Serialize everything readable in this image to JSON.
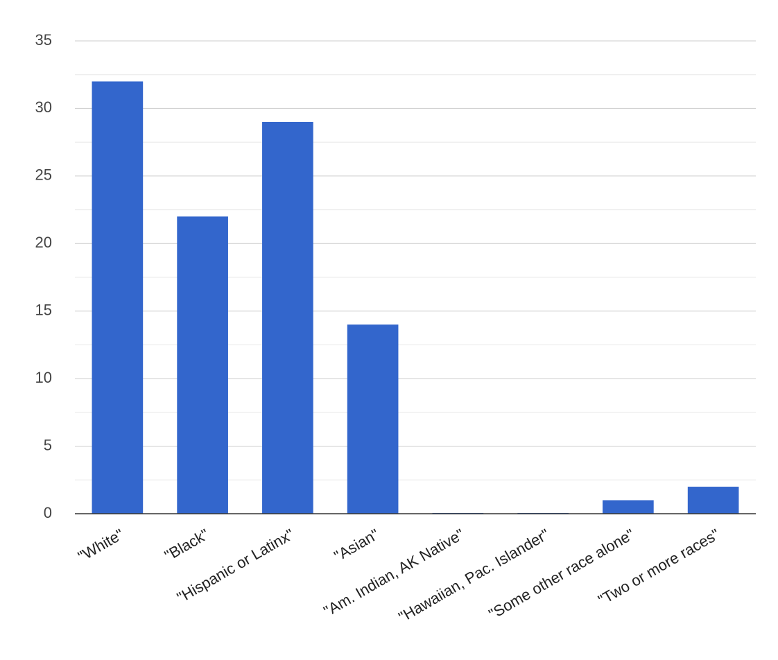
{
  "chart_data": {
    "type": "bar",
    "categories": [
      "\"White\"",
      "\"Black\"",
      "\"Hispanic or Latinx\"",
      "\"Asian\"",
      "\"Am. Indian, AK Native\"",
      "\"Hawaiian, Pac. Islander\"",
      "\"Some other race alone\"",
      "\"Two or more races\""
    ],
    "values": [
      32,
      22,
      29,
      14,
      0,
      0,
      1,
      2
    ],
    "color": "#3366cc",
    "ylim": [
      0,
      35
    ],
    "yticks": [
      0,
      5,
      10,
      15,
      20,
      25,
      30,
      35
    ],
    "grid": true,
    "minor_grid": true
  }
}
